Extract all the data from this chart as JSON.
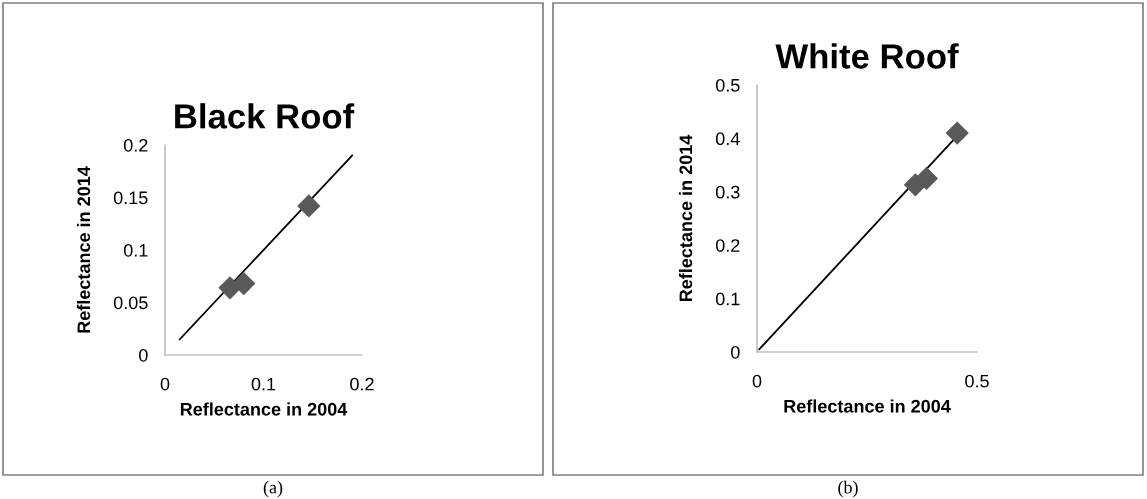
{
  "chart_data": [
    {
      "type": "scatter",
      "title": "Black Roof",
      "xlabel": "Reflectance in 2004",
      "ylabel": "Reflectance in 2014",
      "annotations": [
        "(a)"
      ],
      "series": [
        {
          "color": "#595959",
          "marker": "diamond",
          "x": [
            0.066,
            0.08,
            0.146
          ],
          "values": [
            0.064,
            0.068,
            0.142
          ]
        },
        {
          "type": "line",
          "color": "#000000",
          "marker": "none",
          "x": [
            0.015,
            0.19
          ],
          "values": [
            0.015,
            0.19
          ]
        }
      ],
      "xlim": [
        0,
        0.2
      ],
      "xticks": [
        0,
        0.1,
        0.2
      ],
      "ylim": [
        0,
        0.2
      ],
      "yticks": [
        0,
        0.05,
        0.1,
        0.15,
        0.2
      ],
      "grid": false,
      "legend": false
    },
    {
      "type": "scatter",
      "title": "White Roof",
      "xlabel": "Reflectance in 2004",
      "ylabel": "Reflectance in 2014",
      "annotations": [
        "(b)"
      ],
      "series": [
        {
          "color": "#595959",
          "marker": "diamond",
          "x": [
            0.36,
            0.385,
            0.455
          ],
          "values": [
            0.313,
            0.325,
            0.41
          ]
        },
        {
          "type": "line",
          "color": "#000000",
          "marker": "none",
          "x": [
            0.005,
            0.45
          ],
          "values": [
            0.005,
            0.4
          ]
        }
      ],
      "xlim": [
        0,
        0.5
      ],
      "xticks": [
        0,
        0.5
      ],
      "ylim": [
        0,
        0.5
      ],
      "yticks": [
        0,
        0.1,
        0.2,
        0.3,
        0.4,
        0.5
      ],
      "grid": false,
      "legend": false
    }
  ]
}
